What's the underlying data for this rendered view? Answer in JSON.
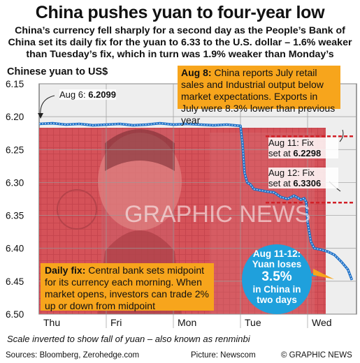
{
  "header": {
    "title": "China pushes yuan to four-year low",
    "subtitle": "China’s currency fell sharply for a second day as the People’s Bank of China set its daily fix for the yuan to 6.33 to the U.S. dollar – 1.6% weaker than Tuesday’s fix, which in turn was 1.9% weaker than Monday’s"
  },
  "chart_data": {
    "type": "line",
    "ylabel": "Chinese yuan to US$",
    "y_inverted": true,
    "ylim": [
      6.15,
      6.5
    ],
    "yticks": [
      "6.15",
      "6.20",
      "6.25",
      "6.30",
      "6.35",
      "6.40",
      "6.45",
      "6.50"
    ],
    "categories": [
      "Thu",
      "Fri",
      "Mon",
      "Tue",
      "Wed"
    ],
    "grid": true,
    "series": [
      {
        "x": [
          0.0,
          0.2,
          0.4,
          0.6,
          0.8,
          1.0,
          1.2,
          1.4,
          1.6,
          1.8,
          2.0,
          2.2,
          2.4,
          2.6,
          2.8,
          3.0,
          3.03,
          3.06,
          3.1,
          3.15,
          3.2,
          3.3,
          3.4,
          3.5,
          3.6,
          3.7,
          3.8,
          3.9,
          3.95,
          3.98,
          4.0,
          4.05,
          4.1,
          4.2,
          4.3,
          4.4,
          4.5,
          4.6,
          4.66
        ],
        "values": [
          6.211,
          6.21,
          6.212,
          6.211,
          6.213,
          6.212,
          6.211,
          6.213,
          6.212,
          6.21,
          6.212,
          6.211,
          6.212,
          6.213,
          6.212,
          6.214,
          6.24,
          6.285,
          6.3,
          6.303,
          6.31,
          6.312,
          6.314,
          6.315,
          6.322,
          6.325,
          6.32,
          6.326,
          6.324,
          6.33,
          6.36,
          6.39,
          6.4,
          6.402,
          6.405,
          6.41,
          6.42,
          6.432,
          6.448
        ]
      }
    ],
    "fix_lines": [
      {
        "label_date": "Aug 11: Fix",
        "label_prefix": "set at",
        "value": "6.2298",
        "y": 6.2298
      },
      {
        "label_date": "Aug 12: Fix",
        "label_prefix": "set at",
        "value": "6.3306",
        "y": 6.3306
      }
    ],
    "start_annotation": {
      "label": "Aug 6:",
      "value": "6.2099"
    },
    "colors": {
      "line": "#1b6fc7",
      "fix": "#d22027",
      "callout": "#f7a51c",
      "bubble": "#1fa0dc"
    }
  },
  "callouts": {
    "aug8_date": "Aug 8:",
    "aug8_text": " China reports July retail sales and Industrial output below market expectations. Exports in July were 8.3% lower than previous year",
    "daily_fix_head": "Daily fix:",
    "daily_fix_text": " Central bank sets midpoint for its currency each morning. When market opens, investors can trade 2% up or down from midpoint",
    "bubble_head": "Aug 11-12: Yuan loses",
    "bubble_value": "3.5%",
    "bubble_tail": "in China in two days"
  },
  "watermark": "GRAPHIC NEWS",
  "note": "Scale inverted to show fall of yuan – also known as renminbi",
  "footer": {
    "sources": "Sources: Bloomberg, Zerohedge.com",
    "picture": "Picture: Newscom",
    "credit": "© GRAPHIC NEWS"
  }
}
